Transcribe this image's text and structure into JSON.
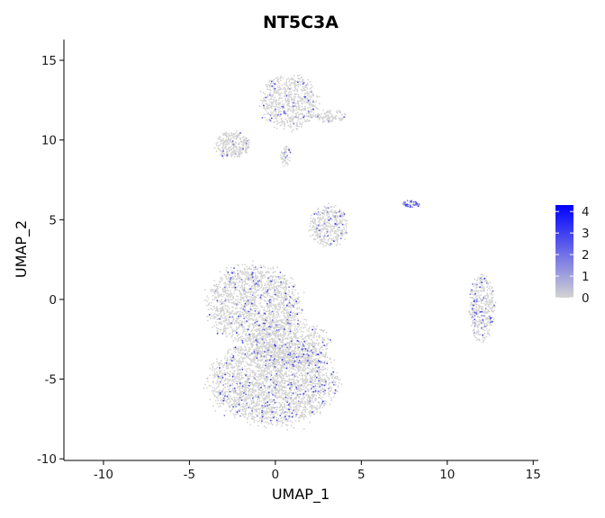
{
  "chart_data": {
    "type": "scatter",
    "title": "NT5C3A",
    "xlabel": "UMAP_1",
    "ylabel": "UMAP_2",
    "xlim": [
      -12.3,
      15.3
    ],
    "ylim": [
      -10.1,
      16.3
    ],
    "x_ticks": [
      -10,
      -5,
      0,
      5,
      10,
      15
    ],
    "y_ticks": [
      -10,
      -5,
      0,
      5,
      10,
      15
    ],
    "x_tick_labels": [
      "-10",
      "-5",
      "0",
      "5",
      "10",
      "15"
    ],
    "y_tick_labels": [
      "-10",
      "-5",
      "0",
      "5",
      "10",
      "15"
    ],
    "grid": false,
    "point_color_low": "#d3d3d3",
    "point_color_high": "#0000ff",
    "legend": {
      "placement": "right",
      "min": 0,
      "max": 4.3,
      "ticks": [
        0,
        1,
        2,
        3,
        4
      ],
      "tick_labels": [
        "0",
        "1",
        "2",
        "3",
        "4"
      ]
    },
    "clusters": [
      {
        "name": "main-lower-blob",
        "center": [
          -0.1,
          -5.2
        ],
        "radius": [
          3.6,
          2.6
        ],
        "n_points": 2600,
        "expr_fraction": 0.08
      },
      {
        "name": "main-upper-blob",
        "center": [
          -1.3,
          -0.3
        ],
        "radius": [
          2.6,
          2.4
        ],
        "n_points": 1600,
        "expr_fraction": 0.07
      },
      {
        "name": "main-neck",
        "center": [
          0.8,
          -2.8
        ],
        "radius": [
          2.3,
          1.5
        ],
        "n_points": 700,
        "expr_fraction": 0.06
      },
      {
        "name": "mid-right-cluster",
        "center": [
          3.1,
          4.6
        ],
        "radius": [
          1.1,
          1.3
        ],
        "n_points": 380,
        "expr_fraction": 0.05
      },
      {
        "name": "top-cluster",
        "center": [
          0.8,
          12.4
        ],
        "radius": [
          1.6,
          1.7
        ],
        "n_points": 650,
        "expr_fraction": 0.06
      },
      {
        "name": "top-right-tail",
        "center": [
          3.2,
          11.5
        ],
        "radius": [
          0.9,
          0.4
        ],
        "n_points": 110,
        "expr_fraction": 0.03
      },
      {
        "name": "top-left-cluster",
        "center": [
          -2.5,
          9.7
        ],
        "radius": [
          1.0,
          0.8
        ],
        "n_points": 280,
        "expr_fraction": 0.03
      },
      {
        "name": "top-stem",
        "center": [
          0.6,
          9.0
        ],
        "radius": [
          0.3,
          0.6
        ],
        "n_points": 60,
        "expr_fraction": 0.05
      },
      {
        "name": "right-cluster",
        "center": [
          12.0,
          -0.5
        ],
        "radius": [
          0.75,
          2.0
        ],
        "n_points": 420,
        "expr_fraction": 0.1
      },
      {
        "name": "small-high-expr-cluster",
        "center": [
          7.9,
          6.0
        ],
        "radius": [
          0.5,
          0.25
        ],
        "n_points": 45,
        "expr_fraction": 0.85
      }
    ]
  }
}
